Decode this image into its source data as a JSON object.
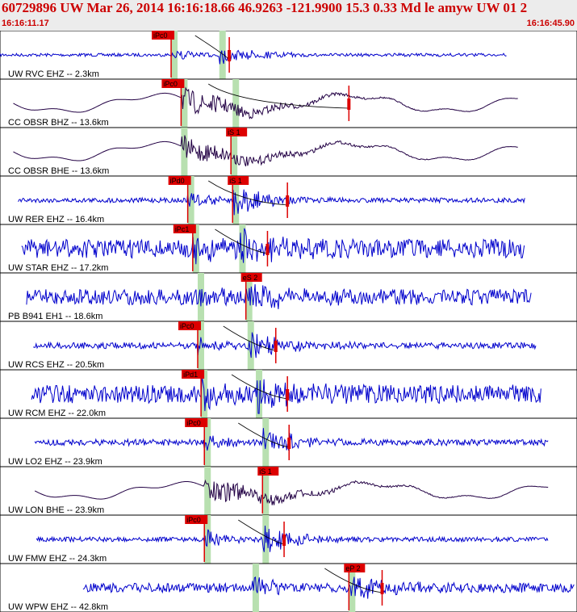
{
  "header": {
    "event_line": "60729896 UW Mar 26, 2014 16:16:18.66   46.9263 -121.9900 15.3 0.33 Md le amyw UW 01   2",
    "start_time": "16:16:11.17",
    "end_time": "16:16:45.90"
  },
  "colors": {
    "trace_short": "#0000cc",
    "trace_broadband": "#220044",
    "pick": "#dd0000",
    "window": "#b8e0b0"
  },
  "chart_data": {
    "type": "line",
    "title": "60729896 UW Mar 26, 2014 16:16:18.66   46.9263 -121.9900 15.3 0.33 Md le amyw UW 01   2",
    "xlabel": "",
    "ylabel": "",
    "x_range": [
      "16:16:11.17",
      "16:16:45.90"
    ],
    "grid": false,
    "series": [
      {
        "name": "UW RVC EHZ -- 2.3km",
        "kind": "short",
        "start_s": 0.0,
        "end_s": 30.5,
        "p_s": 10.3,
        "s_s": 13.2,
        "p_label": "iPc0",
        "s_label": "",
        "amp": 0.25,
        "noise": 0.02,
        "coda_s": 13.8,
        "window_s": [
          12.0,
          14.0
        ]
      },
      {
        "name": "CC OBSR BHZ -- 13.6km",
        "kind": "broad",
        "start_s": 0.8,
        "end_s": 31.2,
        "p_s": 10.9,
        "s_s": 14.0,
        "p_label": "iPc0",
        "s_label": "",
        "amp": 0.45,
        "noise": 0.05,
        "coda_s": 21.0,
        "window_s": [
          10.8,
          14.2
        ]
      },
      {
        "name": "CC OBSR BHE -- 13.6km",
        "kind": "broad",
        "start_s": 0.8,
        "end_s": 31.2,
        "p_s": 10.9,
        "s_s": 13.9,
        "p_label": "",
        "s_label": "iS 1",
        "amp": 0.45,
        "noise": 0.05,
        "coda_s": 0,
        "window_s": [
          10.8,
          14.2
        ]
      },
      {
        "name": "UW RER EHZ -- 16.4km",
        "kind": "short",
        "start_s": 1.1,
        "end_s": 31.6,
        "p_s": 11.3,
        "s_s": 14.0,
        "p_label": "iPd0",
        "s_label": "iS 1",
        "amp": 0.42,
        "noise": 0.03,
        "coda_s": 17.3,
        "window_s": [
          11.4,
          14.8
        ]
      },
      {
        "name": "UW STAR EHZ -- 17.2km",
        "kind": "short",
        "start_s": 1.3,
        "end_s": 31.6,
        "p_s": 11.6,
        "s_s": 14.4,
        "p_label": "iPc1",
        "s_label": "",
        "amp": 0.45,
        "noise": 0.12,
        "coda_s": 16.1,
        "window_s": [
          11.6,
          14.6
        ]
      },
      {
        "name": "PB B941 EH1 -- 18.6km",
        "kind": "short",
        "start_s": 1.6,
        "end_s": 32.0,
        "p_s": 11.9,
        "s_s": 14.8,
        "p_label": "",
        "s_label": "eS 2",
        "amp": 0.4,
        "noise": 0.1,
        "coda_s": 0,
        "window_s": [
          11.9,
          15.0
        ]
      },
      {
        "name": "UW RCS EHZ -- 20.5km",
        "kind": "short",
        "start_s": 2.0,
        "end_s": 32.3,
        "p_s": 11.9,
        "s_s": 14.9,
        "p_label": "iPc0",
        "s_label": "",
        "amp": 0.4,
        "noise": 0.04,
        "coda_s": 16.6,
        "window_s": [
          11.9,
          15.3
        ]
      },
      {
        "name": "UW RCM EHZ -- 22.0km",
        "kind": "short",
        "start_s": 1.9,
        "end_s": 32.6,
        "p_s": 12.1,
        "s_s": 15.4,
        "p_label": "iPd1",
        "s_label": "",
        "amp": 0.45,
        "noise": 0.12,
        "coda_s": 17.3,
        "window_s": [
          12.1,
          15.5
        ]
      },
      {
        "name": "UW LO2 EHZ -- 23.9km",
        "kind": "short",
        "start_s": 2.1,
        "end_s": 33.0,
        "p_s": 12.3,
        "s_s": 15.8,
        "p_label": "iPc0",
        "s_label": "",
        "amp": 0.38,
        "noise": 0.04,
        "coda_s": 17.4,
        "window_s": [
          12.3,
          16.0
        ]
      },
      {
        "name": "UW LON BHE -- 23.9km",
        "kind": "broad",
        "start_s": 2.1,
        "end_s": 33.0,
        "p_s": 12.3,
        "s_s": 15.8,
        "p_label": "",
        "s_label": "iS 1",
        "amp": 0.4,
        "noise": 0.05,
        "coda_s": 0,
        "window_s": [
          12.3,
          16.0
        ]
      },
      {
        "name": "UW FMW EHZ -- 24.3km",
        "kind": "short",
        "start_s": 2.2,
        "end_s": 33.0,
        "p_s": 12.3,
        "s_s": 15.8,
        "p_label": "iPc0",
        "s_label": "",
        "amp": 0.38,
        "noise": 0.03,
        "coda_s": 17.1,
        "window_s": [
          12.3,
          16.0
        ]
      },
      {
        "name": "UW WPW EHZ -- 42.8km",
        "kind": "short",
        "start_s": 5.0,
        "end_s": 34.6,
        "p_s": 15.2,
        "s_s": 21.0,
        "p_label": "",
        "s_label": "eP 2",
        "amp": 0.45,
        "noise": 0.06,
        "coda_s": 23.0,
        "window_s": [
          15.0,
          21.5
        ]
      }
    ]
  }
}
